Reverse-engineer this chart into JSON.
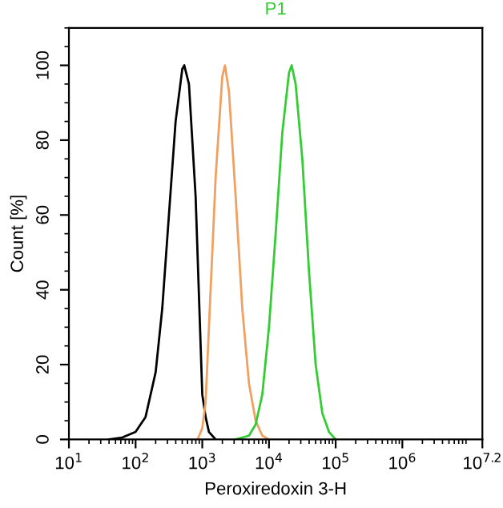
{
  "chart_data": {
    "type": "line",
    "title": "P1",
    "xlabel": "Peroxiredoxin 3-H",
    "ylabel": "Count [%]",
    "log": "x",
    "xlim": [
      10,
      15848932
    ],
    "ylim": [
      0,
      110
    ],
    "xticks": [
      {
        "value": 10,
        "label": "10$^{1}$"
      },
      {
        "value": 100,
        "label": "10$^{2}$"
      },
      {
        "value": 1000,
        "label": "10$^{3}$"
      },
      {
        "value": 10000,
        "label": "10$^{4}$"
      },
      {
        "value": 100000,
        "label": "10$^{5}$"
      },
      {
        "value": 1000000,
        "label": "10$^{6}$"
      },
      {
        "value": 15848932,
        "label": "10$^{7.2}$"
      }
    ],
    "yticks": [
      0,
      20,
      40,
      60,
      80,
      100
    ],
    "series": [
      {
        "color": "#000000",
        "x": [
          40,
          63,
          100,
          141,
          200,
          251,
          316,
          398,
          501,
          537,
          631,
          794,
          1000,
          1122,
          1259,
          1585
        ],
        "values": [
          0,
          0.5,
          2,
          6,
          18,
          35,
          60,
          85,
          99,
          100,
          95,
          65,
          12,
          6,
          2,
          0
        ]
      },
      {
        "color": "#f0a060",
        "x": [
          851,
          1000,
          1122,
          1259,
          1585,
          1995,
          2188,
          2512,
          3162,
          3981,
          5012,
          6310,
          7943,
          10000
        ],
        "values": [
          0,
          3,
          10,
          30,
          70,
          97,
          100,
          93,
          65,
          35,
          15,
          5,
          1,
          0
        ]
      },
      {
        "color": "#33cc33",
        "x": [
          3162,
          5012,
          6310,
          7943,
          10000,
          12589,
          15849,
          19953,
          21878,
          25119,
          31623,
          39811,
          50119,
          63096,
          79433,
          100000
        ],
        "values": [
          0,
          1,
          4,
          12,
          30,
          55,
          82,
          98,
          100,
          95,
          75,
          45,
          20,
          7,
          2,
          0
        ]
      }
    ]
  }
}
